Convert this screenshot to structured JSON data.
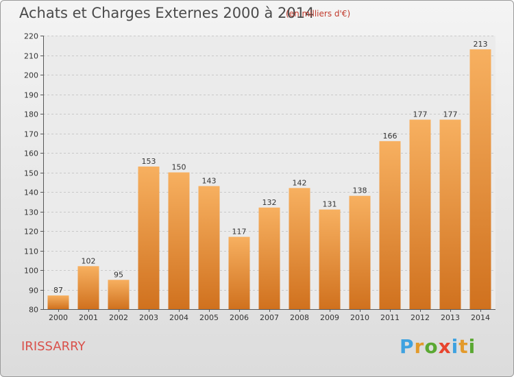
{
  "header": {
    "title": "Achats et Charges Externes 2000 à 2014",
    "subtitle": "(en milliers d'€)"
  },
  "footer": {
    "commune": "IRISSARRY",
    "logo_letters": [
      "P",
      "r",
      "o",
      "x",
      "i",
      "t",
      "i"
    ],
    "logo_colors": [
      "#3fa2e0",
      "#e39a2b",
      "#5aa832",
      "#e8442e",
      "#3fa2e0",
      "#e39a2b",
      "#5aa832"
    ]
  },
  "chart_data": {
    "type": "bar",
    "categories": [
      "2000",
      "2001",
      "2002",
      "2003",
      "2004",
      "2005",
      "2006",
      "2007",
      "2008",
      "2009",
      "2010",
      "2011",
      "2012",
      "2013",
      "2014"
    ],
    "values": [
      87,
      102,
      95,
      153,
      150,
      143,
      117,
      132,
      142,
      131,
      138,
      166,
      177,
      177,
      213
    ],
    "title": "Achats et Charges Externes 2000 à 2014",
    "xlabel": "",
    "ylabel": "",
    "ylim": [
      80,
      220
    ],
    "yticks": [
      80,
      90,
      100,
      110,
      120,
      130,
      140,
      150,
      160,
      170,
      180,
      190,
      200,
      210,
      220
    ],
    "grid": true,
    "bar_color": "#f0953c",
    "bar_color_light": "#f7b060",
    "bar_color_dark": "#d0711e"
  }
}
